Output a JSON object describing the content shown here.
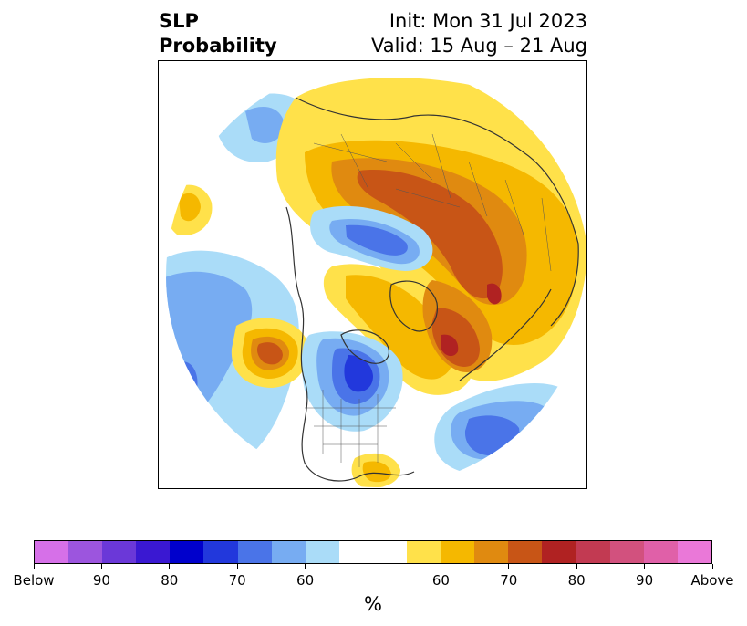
{
  "title": {
    "left_line1": "SLP",
    "left_line2": "Probability",
    "right_line1": "Init: Mon 31 Jul 2023",
    "right_line2": "Valid: 15 Aug – 21 Aug"
  },
  "colorbar": {
    "unit": "%",
    "colors": [
      "#d670e8",
      "#9c55de",
      "#6b38d8",
      "#3a18d2",
      "#0000cc",
      "#2238dc",
      "#4a74e8",
      "#77acf2",
      "#aadcf8",
      "#ffffff",
      "#ffe14a",
      "#f5b800",
      "#e08a10",
      "#c85516",
      "#b02222",
      "#c23a52",
      "#d2517e",
      "#e060a8",
      "#ea78d8"
    ],
    "tick_labels": [
      "Below",
      "90",
      "80",
      "70",
      "60",
      "60",
      "70",
      "80",
      "90",
      "Above"
    ]
  },
  "map": {
    "projection": "north-polar-stereographic",
    "anomaly_colors": {
      "above_light": "#ffe14a",
      "above_mid": "#f5b800",
      "above_orange": "#e08a10",
      "above_dark": "#c85516",
      "above_red": "#b02222",
      "below_light": "#aadcf8",
      "below_mid": "#77acf2",
      "below_blue": "#4a74e8",
      "below_dark": "#2238dc"
    }
  }
}
